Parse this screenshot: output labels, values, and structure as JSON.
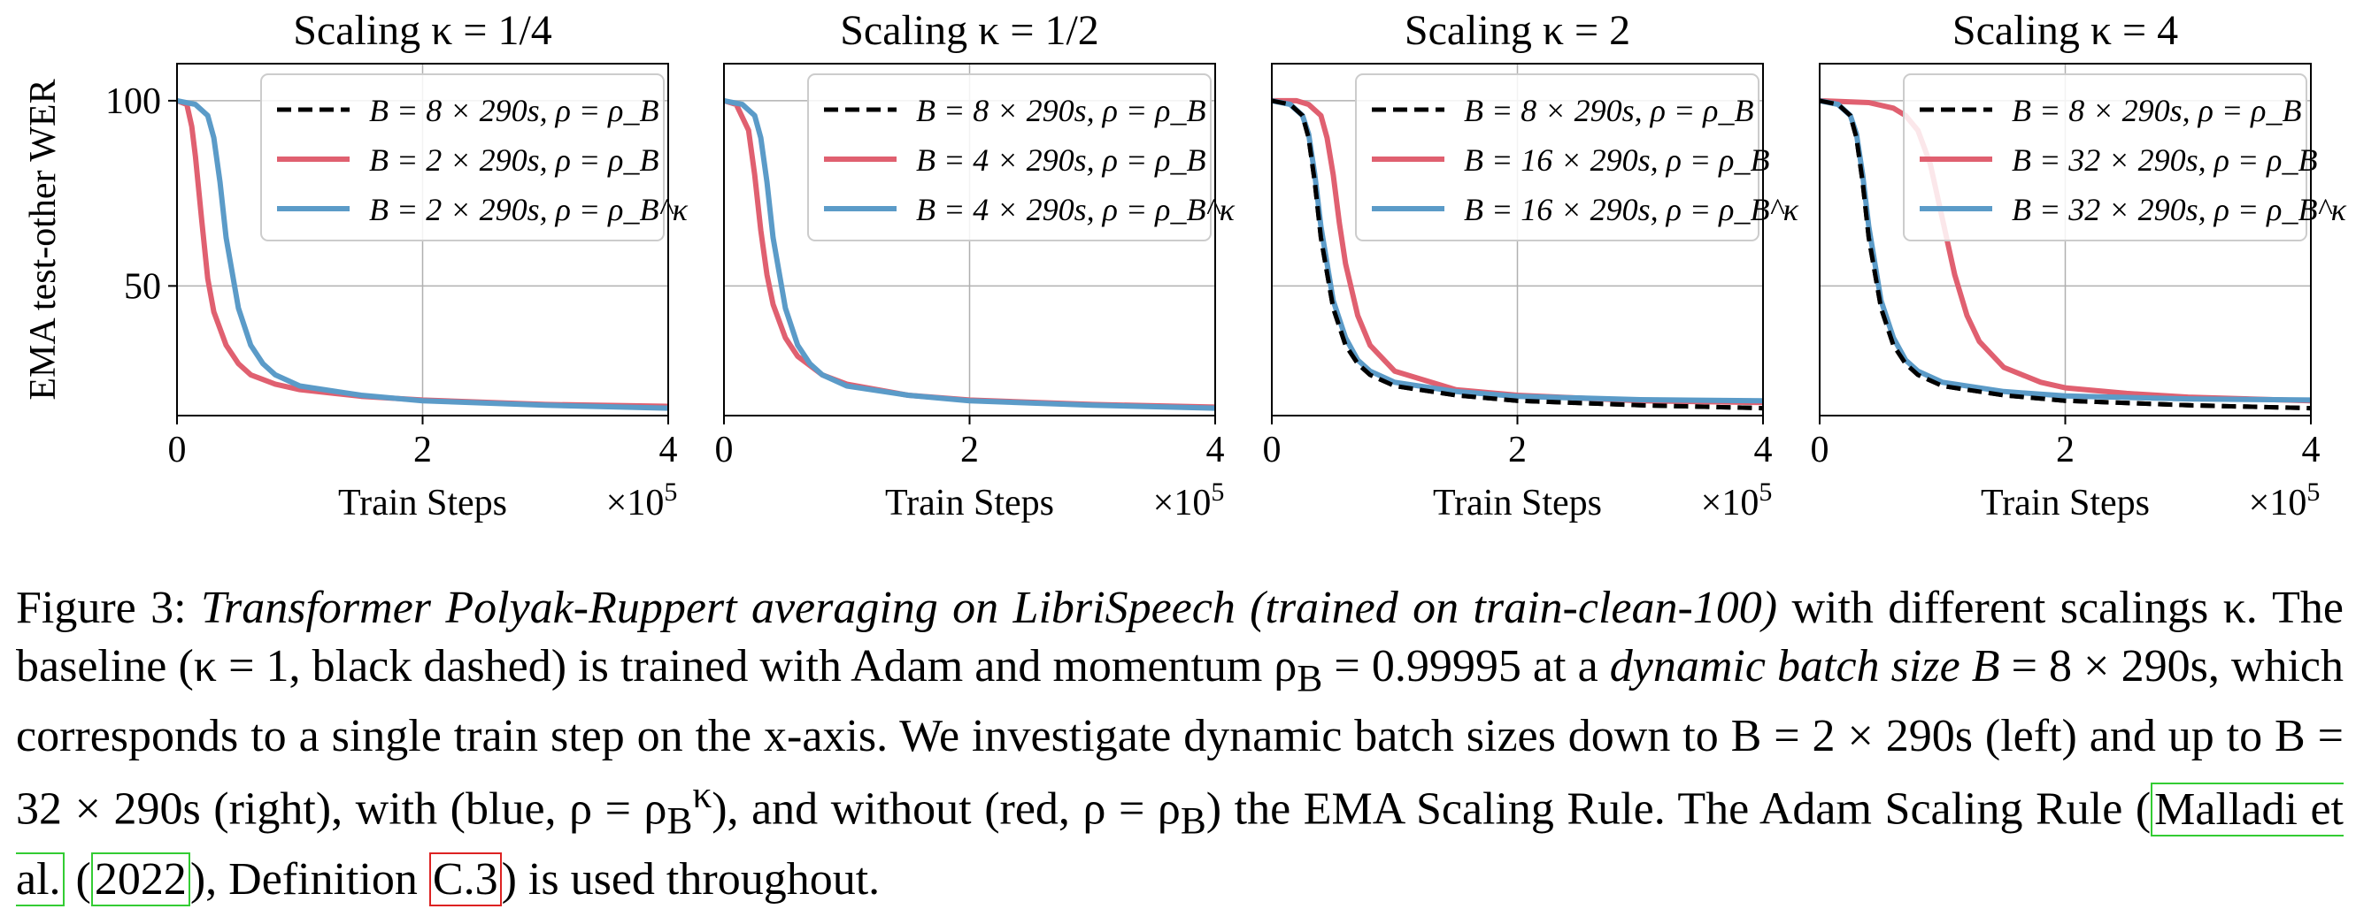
{
  "chart_data": [
    {
      "type": "line",
      "title": "Scaling κ = 1/4",
      "xlabel": "Train Steps",
      "x_multiplier": "×10^5",
      "ylabel": "EMA test-other WER",
      "xlim": [
        0,
        4
      ],
      "ylim": [
        15,
        110
      ],
      "xticks": [
        "0",
        "2",
        "4"
      ],
      "yticks": [
        "50",
        "100"
      ],
      "grid": true,
      "legend_position": "top-right",
      "series": [
        {
          "name": "B = 8 × 290s, ρ = ρ_B",
          "color": "#000000",
          "dash": "dashed",
          "x": [
            0,
            0.15,
            0.25,
            0.3,
            0.35,
            0.4,
            0.5,
            0.6,
            0.7,
            0.8,
            1.0,
            1.5,
            2.0,
            3.0,
            4.0
          ],
          "y": [
            100,
            99,
            96,
            90,
            78,
            63,
            44,
            34,
            29,
            26,
            23,
            20.5,
            19,
            17.8,
            17
          ]
        },
        {
          "name": "B = 2 × 290s, ρ = ρ_B",
          "color": "#e06070",
          "dash": "solid",
          "x": [
            0,
            0.08,
            0.12,
            0.15,
            0.2,
            0.25,
            0.3,
            0.4,
            0.5,
            0.6,
            0.8,
            1.0,
            1.5,
            2.0,
            3.0,
            4.0
          ],
          "y": [
            100,
            99,
            93,
            85,
            68,
            52,
            43,
            34,
            29,
            26,
            23.5,
            22,
            20.2,
            19.2,
            18,
            17.5
          ]
        },
        {
          "name": "B = 2 × 290s, ρ = ρ_B^κ",
          "color": "#5b9bc8",
          "dash": "solid",
          "x": [
            0,
            0.15,
            0.25,
            0.3,
            0.35,
            0.4,
            0.5,
            0.6,
            0.7,
            0.8,
            1.0,
            1.5,
            2.0,
            3.0,
            4.0
          ],
          "y": [
            100,
            99,
            96,
            90,
            78,
            63,
            44,
            34,
            29,
            26,
            23,
            20.5,
            19,
            17.8,
            17
          ]
        }
      ]
    },
    {
      "type": "line",
      "title": "Scaling κ = 1/2",
      "xlabel": "Train Steps",
      "x_multiplier": "×10^5",
      "xlim": [
        0,
        4
      ],
      "ylim": [
        15,
        110
      ],
      "xticks": [
        "0",
        "2",
        "4"
      ],
      "grid": true,
      "legend_position": "top-right",
      "series": [
        {
          "name": "B = 8 × 290s, ρ = ρ_B",
          "color": "#000000",
          "dash": "dashed",
          "x": [
            0,
            0.15,
            0.25,
            0.3,
            0.35,
            0.4,
            0.5,
            0.6,
            0.7,
            0.8,
            1.0,
            1.5,
            2.0,
            3.0,
            4.0
          ],
          "y": [
            100,
            99,
            96,
            90,
            78,
            63,
            44,
            34,
            29,
            26,
            23,
            20.5,
            19,
            17.8,
            17
          ]
        },
        {
          "name": "B = 4 × 290s, ρ = ρ_B",
          "color": "#e06070",
          "dash": "solid",
          "x": [
            0,
            0.1,
            0.2,
            0.25,
            0.3,
            0.35,
            0.4,
            0.5,
            0.6,
            0.8,
            1.0,
            1.5,
            2.0,
            3.0,
            4.0
          ],
          "y": [
            100,
            99,
            92,
            80,
            65,
            53,
            45,
            36,
            31,
            26,
            23.5,
            20.5,
            19.2,
            18,
            17.3
          ]
        },
        {
          "name": "B = 4 × 290s, ρ = ρ_B^κ",
          "color": "#5b9bc8",
          "dash": "solid",
          "x": [
            0,
            0.15,
            0.25,
            0.3,
            0.35,
            0.4,
            0.5,
            0.6,
            0.7,
            0.8,
            1.0,
            1.5,
            2.0,
            3.0,
            4.0
          ],
          "y": [
            100,
            99,
            96,
            90,
            78,
            63,
            44,
            34,
            29,
            26,
            23,
            20.5,
            19,
            17.8,
            17
          ]
        }
      ]
    },
    {
      "type": "line",
      "title": "Scaling κ = 2",
      "xlabel": "Train Steps",
      "x_multiplier": "×10^5",
      "xlim": [
        0,
        4
      ],
      "ylim": [
        15,
        110
      ],
      "xticks": [
        "0",
        "2",
        "4"
      ],
      "grid": true,
      "legend_position": "top-right",
      "series": [
        {
          "name": "B = 8 × 290s, ρ = ρ_B",
          "color": "#000000",
          "dash": "dashed",
          "x": [
            0,
            0.15,
            0.25,
            0.3,
            0.35,
            0.4,
            0.5,
            0.6,
            0.7,
            0.8,
            1.0,
            1.5,
            2.0,
            3.0,
            4.0
          ],
          "y": [
            100,
            99,
            96,
            90,
            78,
            63,
            44,
            34,
            29,
            26,
            23,
            20.5,
            19,
            17.8,
            17
          ]
        },
        {
          "name": "B = 16 × 290s, ρ = ρ_B",
          "color": "#e06070",
          "dash": "solid",
          "x": [
            0,
            0.2,
            0.3,
            0.4,
            0.45,
            0.5,
            0.55,
            0.6,
            0.7,
            0.8,
            1.0,
            1.5,
            2.0,
            3.0,
            4.0
          ],
          "y": [
            100,
            100,
            99,
            96,
            90,
            80,
            67,
            56,
            42,
            34,
            27,
            22,
            20.5,
            19,
            18.5
          ]
        },
        {
          "name": "B = 16 × 290s, ρ = ρ_B^κ",
          "color": "#5b9bc8",
          "dash": "solid",
          "x": [
            0,
            0.15,
            0.25,
            0.3,
            0.35,
            0.4,
            0.5,
            0.6,
            0.7,
            0.8,
            1.0,
            1.5,
            2.0,
            3.0,
            4.0
          ],
          "y": [
            100,
            99,
            96,
            91,
            80,
            66,
            46,
            36,
            30,
            27,
            24,
            21.5,
            20.2,
            19.3,
            19
          ]
        }
      ]
    },
    {
      "type": "line",
      "title": "Scaling κ = 4",
      "xlabel": "Train Steps",
      "x_multiplier": "×10^5",
      "xlim": [
        0,
        4
      ],
      "ylim": [
        15,
        110
      ],
      "xticks": [
        "0",
        "2",
        "4"
      ],
      "grid": true,
      "legend_position": "top-right",
      "series": [
        {
          "name": "B = 8 × 290s, ρ = ρ_B",
          "color": "#000000",
          "dash": "dashed",
          "x": [
            0,
            0.15,
            0.25,
            0.3,
            0.35,
            0.4,
            0.5,
            0.6,
            0.7,
            0.8,
            1.0,
            1.5,
            2.0,
            3.0,
            4.0
          ],
          "y": [
            100,
            99,
            96,
            90,
            78,
            63,
            44,
            34,
            29,
            26,
            23,
            20.5,
            19,
            17.8,
            17
          ]
        },
        {
          "name": "B = 32 × 290s, ρ = ρ_B",
          "color": "#e06070",
          "dash": "solid",
          "x": [
            0,
            0.4,
            0.6,
            0.7,
            0.8,
            0.9,
            1.0,
            1.1,
            1.2,
            1.3,
            1.5,
            1.8,
            2.0,
            2.5,
            3.0,
            4.0
          ],
          "y": [
            100,
            99.5,
            98,
            96,
            92,
            83,
            68,
            53,
            42,
            35,
            28,
            24,
            22.5,
            21,
            20,
            19
          ]
        },
        {
          "name": "B = 32 × 290s, ρ = ρ_B^κ",
          "color": "#5b9bc8",
          "dash": "solid",
          "x": [
            0,
            0.15,
            0.25,
            0.3,
            0.35,
            0.4,
            0.5,
            0.6,
            0.7,
            0.8,
            1.0,
            1.5,
            2.0,
            3.0,
            4.0
          ],
          "y": [
            100,
            99,
            96,
            91,
            80,
            66,
            46,
            36,
            30,
            27,
            24,
            21.5,
            20.3,
            19.5,
            19.2
          ]
        }
      ]
    }
  ],
  "caption": {
    "figure_label": "Figure 3:",
    "title_italic": "Transformer Polyak-Ruppert averaging on LibriSpeech (trained on train-clean-100)",
    "text_1": " with different scalings κ. The baseline (κ = 1, black dashed) is trained with Adam and momentum ρ",
    "sub_B": "B",
    "text_2": " = 0.99995 at a ",
    "italic_2": "dynamic batch size B",
    "text_3": " = 8 × 290s, which corresponds to a single train step on the x-axis. We investigate dynamic batch sizes down to B = 2 × 290s (left) and up to B = 32 × 290s (right), with (blue, ρ = ρ",
    "sup_kappa": "κ",
    "text_4": "), and without (red, ρ = ρ",
    "text_5": ") the EMA Scaling Rule. The Adam Scaling Rule (",
    "cite_author": "Malladi et al.",
    "text_6": " (",
    "cite_year": "2022",
    "text_7": "), Definition ",
    "ref_def": "C.3",
    "text_8": ") is used throughout."
  }
}
